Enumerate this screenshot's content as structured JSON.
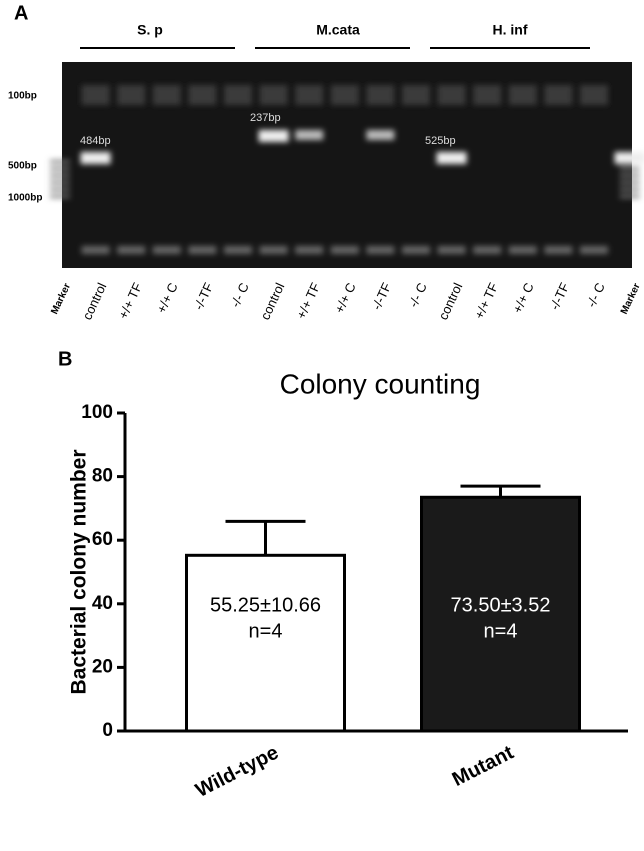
{
  "panel_a": {
    "label": "A",
    "groups": [
      "S. p",
      "M.cata",
      "H. inf"
    ],
    "size_markers": [
      "100bp",
      "500bp",
      "1000bp"
    ],
    "band_labels": [
      "484bp",
      "237bp",
      "525bp"
    ],
    "lanes": [
      "Marker",
      "control",
      "+/+ TF",
      "+/+ C",
      "-/-TF",
      "-/- C",
      "control",
      "+/+ TF",
      "+/+ C",
      "-/-TF",
      "-/- C",
      "control",
      "+/+ TF",
      "+/+ C",
      "-/-TF",
      "-/- C",
      "Marker"
    ]
  },
  "chart_data": {
    "type": "bar",
    "panel_label": "B",
    "title": "Colony counting",
    "y_label": "Bacterial colony number",
    "categories": [
      "Wild-type",
      "Mutant"
    ],
    "values": [
      55.25,
      73.5
    ],
    "errors": [
      10.66,
      3.52
    ],
    "value_labels": [
      "55.25±10.66",
      "73.50±3.52"
    ],
    "annotations": [
      "n=4",
      "n=4"
    ],
    "colors": [
      "#ffffff",
      "#1a1a1a"
    ],
    "edge_color": "#000000",
    "ylim": [
      0,
      100
    ],
    "yticks": [
      0,
      20,
      40,
      60,
      80,
      100
    ],
    "grid": false
  }
}
